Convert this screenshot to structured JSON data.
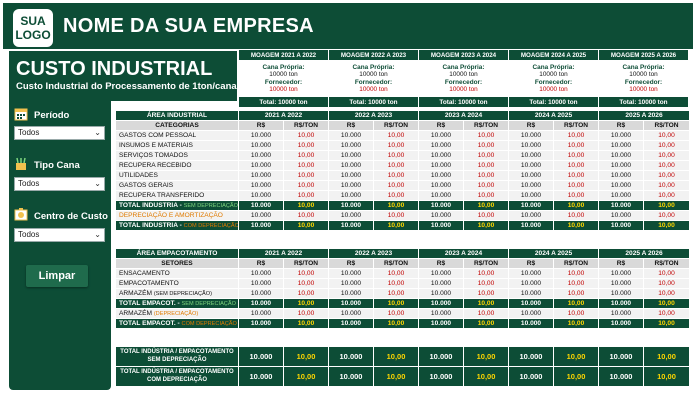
{
  "header": {
    "logo_line1": "SUA",
    "logo_line2": "LOGO",
    "company": "NOME DA SUA EMPRESA"
  },
  "title": {
    "main": "CUSTO INDUSTRIAL",
    "sub": "Custo Industrial do Processamento de 1ton/cana"
  },
  "filters": [
    {
      "label": "Período",
      "value": "Todos"
    },
    {
      "label": "Tipo Cana",
      "value": "Todos"
    },
    {
      "label": "Centro de Custo",
      "value": "Todos"
    }
  ],
  "clear_button": "Limpar",
  "moagem": {
    "headers": [
      "MOAGEM 2021 A 2022",
      "MOAGEM 2022 A 2023",
      "MOAGEM 2023 A 2024",
      "MOAGEM 2024 A 2025",
      "MOAGEM 2025 A 2026"
    ],
    "cana_label": "Cana Própria:",
    "cana_value": "10000 ton",
    "forn_label": "Fornecedor:",
    "forn_value": "10000 ton",
    "total": "Total: 10000 ton"
  },
  "industrial": {
    "area_label": "ÁREA INDUSTRIAL",
    "cat_label": "CATEGORIAS",
    "years": [
      "2021 A 2022",
      "2022 A 2023",
      "2023 A 2024",
      "2024 A 2025",
      "2025 A 2026"
    ],
    "col_rs": "R$",
    "col_rston": "R$/TON",
    "value": "10.000",
    "value_ton": "10,00",
    "categories": [
      "GASTOS COM PESSOAL",
      "INSUMOS E MATERIAIS",
      "SERVIÇOS TOMADOS",
      "RECUPERA RECEBIDO",
      "UTILIDADES",
      "GASTOS GERAIS",
      "RECUPERA TRANSFERIDO"
    ],
    "total_sem_a": "TOTAL INDUSTRIA - ",
    "total_sem_b": "SEM DEPRECIAÇÃO",
    "deprec": "DEPRECIAÇÃO E AMORTIZAÇÃO",
    "total_com_a": "TOTAL INDUSTRIA - ",
    "total_com_b": "COM DEPRECIAÇÃO"
  },
  "empacotamento": {
    "area_label": "ÁREA EMPACOTAMENTO",
    "sect_label": "SETORES",
    "rows": [
      "ENSACAMENTO",
      "EMPACOTAMENTO"
    ],
    "armazem_a": "ARMAZÉM ",
    "armazem_b": "(SEM DEPRECIAÇÃO)",
    "total_sem_a": "TOTAL EMPACOT.  - ",
    "total_sem_b": "SEM DEPRECIAÇÃO",
    "armazem2_a": "ARMAZÉM ",
    "armazem2_b": "(DEPRECIAÇÃO)",
    "total_com_a": "TOTAL EMPACOT.  - ",
    "total_com_b": "COM DEPRECIAÇÃO"
  },
  "grand": {
    "sem_l1": "TOTAL INDÚSTRIA / EMPACOTAMENTO",
    "sem_l2": "SEM DEPRECIAÇÃO",
    "com_l1": "TOTAL INDÚSTRIA / EMPACOTAMENTO",
    "com_l2": "COM DEPRECIAÇÃO"
  }
}
